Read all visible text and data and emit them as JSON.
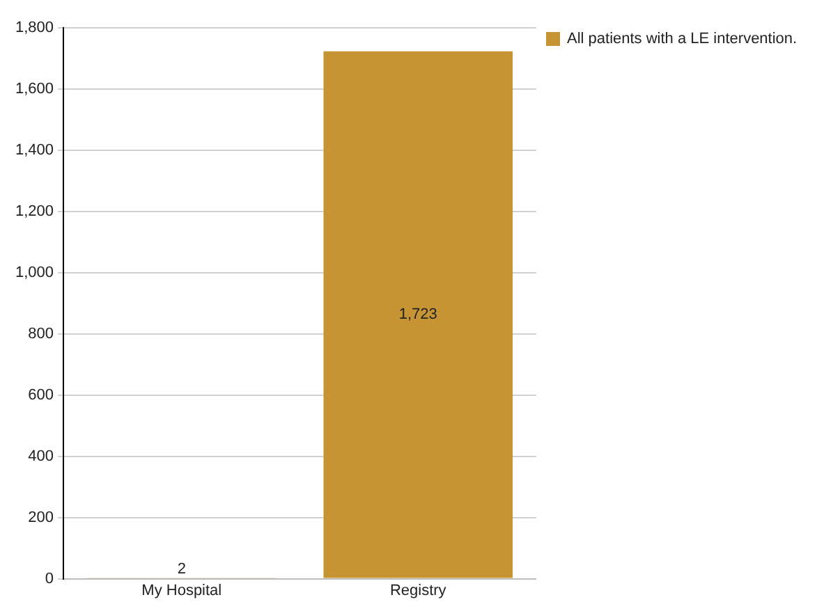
{
  "chart_data": {
    "type": "bar",
    "categories": [
      "My Hospital",
      "Registry"
    ],
    "series": [
      {
        "name": "All patients with a LE intervention.",
        "color": "#c79433",
        "values": [
          2,
          1723
        ],
        "value_labels": [
          "2",
          "1,723"
        ]
      }
    ],
    "ylim": [
      0,
      1800
    ],
    "yticks": [
      0,
      {
        "value": 200,
        "label": "200"
      },
      {
        "value": 400,
        "label": "400"
      },
      {
        "value": 600,
        "label": "600"
      },
      {
        "value": 800,
        "label": "800"
      },
      {
        "value": 1000,
        "label": "1,000"
      },
      {
        "value": 1200,
        "label": "1,200"
      },
      {
        "value": 1400,
        "label": "1,400"
      },
      {
        "value": 1600,
        "label": "1,600"
      },
      {
        "value": 1800,
        "label": "1,800"
      }
    ],
    "grid": "y",
    "legend": "top right"
  }
}
